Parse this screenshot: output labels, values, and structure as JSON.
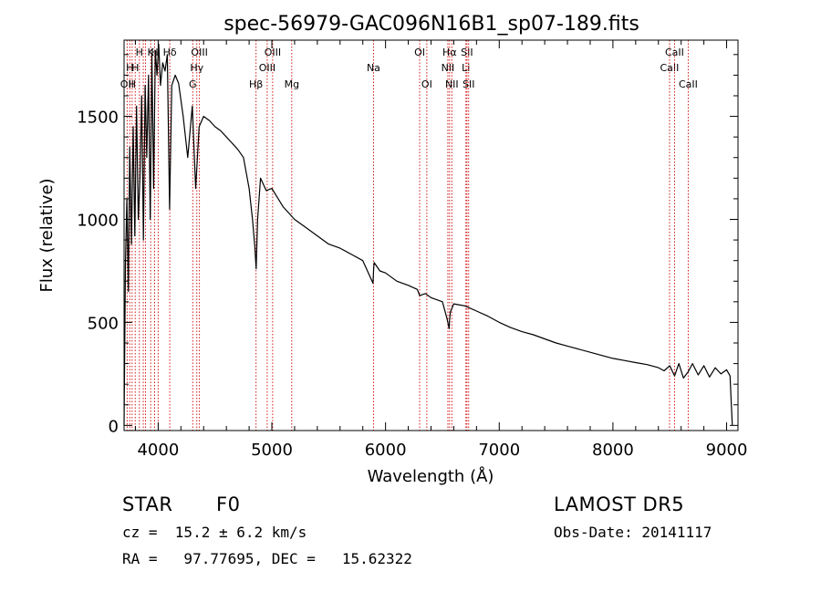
{
  "chart_data": {
    "type": "line",
    "title": "spec-56979-GAC096N16B1_sp07-189.fits",
    "xlabel": "Wavelength (Å)",
    "ylabel": "Flux (relative)",
    "xlim": [
      3700,
      9100
    ],
    "ylim": [
      -25,
      1870
    ],
    "xticks": [
      4000,
      5000,
      6000,
      7000,
      8000,
      9000
    ],
    "yticks": [
      0,
      500,
      1000,
      1500
    ],
    "grid": false,
    "series": [
      {
        "line_color": "#000000",
        "x": [
          3700,
          3712,
          3725,
          3738,
          3750,
          3765,
          3780,
          3795,
          3810,
          3825,
          3840,
          3855,
          3870,
          3885,
          3900,
          3915,
          3930,
          3945,
          3960,
          3975,
          3990,
          4005,
          4020,
          4040,
          4060,
          4080,
          4100,
          4120,
          4150,
          4180,
          4220,
          4260,
          4300,
          4330,
          4360,
          4400,
          4450,
          4500,
          4550,
          4600,
          4650,
          4700,
          4750,
          4800,
          4830,
          4850,
          4862,
          4875,
          4900,
          4950,
          5000,
          5100,
          5200,
          5300,
          5400,
          5500,
          5600,
          5700,
          5800,
          5890,
          5895,
          5900,
          5950,
          6000,
          6100,
          6200,
          6280,
          6300,
          6350,
          6400,
          6500,
          6540,
          6560,
          6563,
          6570,
          6600,
          6700,
          6800,
          6900,
          7000,
          7100,
          7200,
          7300,
          7400,
          7500,
          7600,
          7700,
          7800,
          7900,
          8000,
          8100,
          8200,
          8300,
          8400,
          8450,
          8500,
          8542,
          8580,
          8620,
          8662,
          8700,
          8750,
          8800,
          8850,
          8900,
          8950,
          9000,
          9030,
          9040,
          9050
        ],
        "y": [
          0,
          780,
          1100,
          650,
          1350,
          880,
          1450,
          920,
          1550,
          1000,
          1200,
          1600,
          900,
          1650,
          1300,
          1700,
          1000,
          1800,
          1150,
          1820,
          1700,
          1850,
          1650,
          1760,
          1720,
          1800,
          1050,
          1650,
          1700,
          1660,
          1500,
          1300,
          1550,
          1150,
          1450,
          1500,
          1480,
          1450,
          1430,
          1400,
          1370,
          1340,
          1300,
          1150,
          1000,
          870,
          760,
          1000,
          1200,
          1140,
          1150,
          1060,
          1000,
          960,
          920,
          880,
          860,
          830,
          800,
          690,
          760,
          790,
          750,
          740,
          700,
          680,
          660,
          630,
          640,
          620,
          600,
          520,
          470,
          510,
          550,
          590,
          580,
          555,
          530,
          500,
          475,
          455,
          440,
          420,
          400,
          385,
          370,
          355,
          340,
          325,
          315,
          305,
          295,
          280,
          265,
          290,
          240,
          300,
          230,
          260,
          300,
          245,
          290,
          235,
          280,
          250,
          270,
          240,
          120,
          0
        ],
        "name": ""
      }
    ],
    "line_markers": {
      "color": "#cc0000",
      "marks": [
        {
          "x": 3727,
          "label": "OII",
          "row": 3
        },
        {
          "x": 3750,
          "label": "H",
          "row": 2
        },
        {
          "x": 3771,
          "label": "H",
          "row": 3
        },
        {
          "x": 3798,
          "label": "H",
          "row": 2
        },
        {
          "x": 3835,
          "label": "H",
          "row": 1
        },
        {
          "x": 3869,
          "label": "",
          "row": 1
        },
        {
          "x": 3889,
          "label": "",
          "row": 1
        },
        {
          "x": 3934,
          "label": "K",
          "row": 1
        },
        {
          "x": 3969,
          "label": "H",
          "row": 1
        },
        {
          "x": 4000,
          "label": "",
          "row": 1
        },
        {
          "x": 4102,
          "label": "Hδ",
          "row": 1
        },
        {
          "x": 4304,
          "label": "G",
          "row": 3
        },
        {
          "x": 4340,
          "label": "Hγ",
          "row": 2
        },
        {
          "x": 4363,
          "label": "OIII",
          "row": 1
        },
        {
          "x": 4861,
          "label": "Hβ",
          "row": 3
        },
        {
          "x": 4959,
          "label": "OIII",
          "row": 2
        },
        {
          "x": 5007,
          "label": "OIII",
          "row": 1
        },
        {
          "x": 5175,
          "label": "Mg",
          "row": 3
        },
        {
          "x": 5894,
          "label": "Na",
          "row": 2
        },
        {
          "x": 6300,
          "label": "OI",
          "row": 1
        },
        {
          "x": 6363,
          "label": "OI",
          "row": 3
        },
        {
          "x": 6548,
          "label": "NII",
          "row": 2
        },
        {
          "x": 6563,
          "label": "Hα",
          "row": 1
        },
        {
          "x": 6583,
          "label": "NII",
          "row": 3
        },
        {
          "x": 6707,
          "label": "Li",
          "row": 2
        },
        {
          "x": 6716,
          "label": "SII",
          "row": 1
        },
        {
          "x": 6731,
          "label": "SII",
          "row": 3
        },
        {
          "x": 8498,
          "label": "CaII",
          "row": 2
        },
        {
          "x": 8542,
          "label": "CaII",
          "row": 1
        },
        {
          "x": 8662,
          "label": "CaII",
          "row": 3
        }
      ]
    }
  },
  "info": {
    "object_class": "STAR",
    "subclass": "F0",
    "redshift": "cz =  15.2 ± 6.2 km/s",
    "coords": "RA =   97.77695, DEC =   15.62322",
    "survey": "LAMOST DR5",
    "obs_date": "Obs-Date: 20141117"
  }
}
